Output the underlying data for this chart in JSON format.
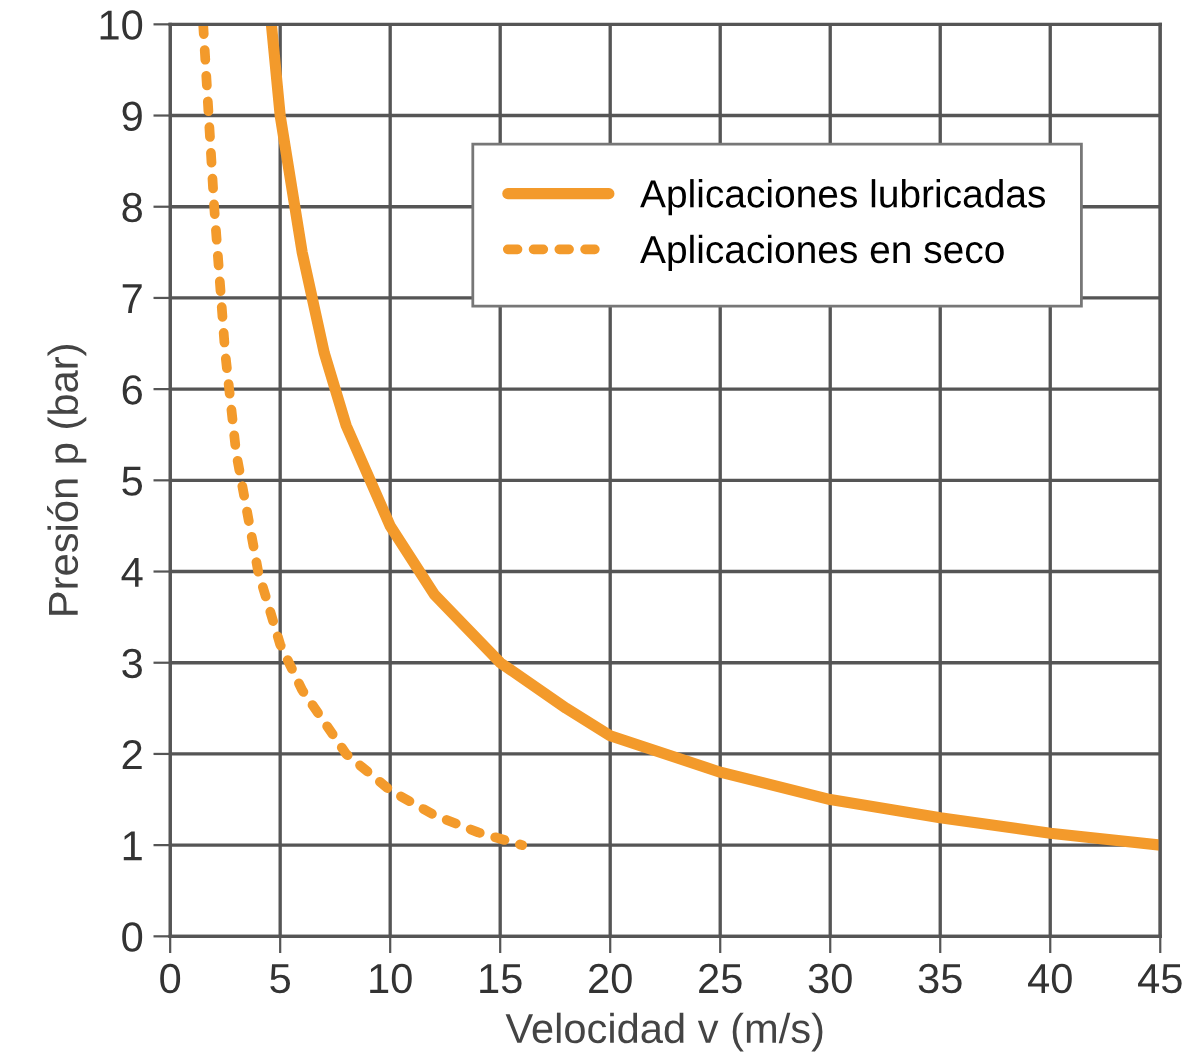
{
  "chart_data": {
    "type": "line",
    "xlabel": "Velocidad v (m/s)",
    "ylabel": "Presión p (bar)",
    "xlim": [
      0,
      45
    ],
    "ylim": [
      0,
      10
    ],
    "xticks": [
      0,
      5,
      10,
      15,
      20,
      25,
      30,
      35,
      40,
      45
    ],
    "yticks": [
      0,
      1,
      2,
      3,
      4,
      5,
      6,
      7,
      8,
      9,
      10
    ],
    "grid": true,
    "legend": "top right",
    "marker": "none",
    "series": [
      {
        "name": "Aplicaciones lubricadas",
        "color": "#f39a2b",
        "line_style": "solid",
        "x": [
          4.6,
          5,
          6,
          7,
          8,
          10,
          12,
          15,
          18,
          20,
          25,
          30,
          35,
          40,
          45
        ],
        "values": [
          10,
          9,
          7.5,
          6.4,
          5.6,
          4.5,
          3.75,
          3,
          2.5,
          2.2,
          1.8,
          1.5,
          1.3,
          1.13,
          1.0
        ]
      },
      {
        "name": "Aplicaciones en seco",
        "color": "#f39a2b",
        "line_style": "dotted",
        "x": [
          1.5,
          2,
          2.5,
          3,
          4,
          5,
          6,
          8,
          10,
          12,
          14,
          16
        ],
        "values": [
          10,
          8,
          6.4,
          5.3,
          4,
          3.2,
          2.7,
          2,
          1.6,
          1.33,
          1.14,
          1.0
        ]
      }
    ]
  }
}
